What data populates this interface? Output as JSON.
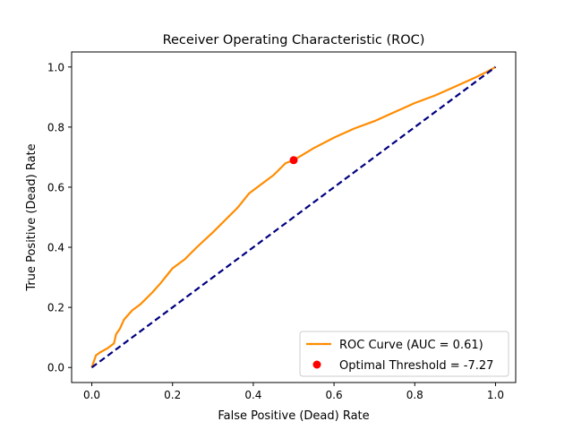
{
  "chart_data": {
    "type": "line",
    "title": "Receiver Operating Characteristic (ROC)",
    "xlabel": "False Positive (Dead) Rate",
    "ylabel": "True Positive (Dead) Rate",
    "xlim": [
      -0.05,
      1.05
    ],
    "ylim": [
      -0.05,
      1.05
    ],
    "xticks": [
      0.0,
      0.2,
      0.4,
      0.6,
      0.8,
      1.0
    ],
    "yticks": [
      0.0,
      0.2,
      0.4,
      0.6,
      0.8,
      1.0
    ],
    "xtick_labels": [
      "0.0",
      "0.2",
      "0.4",
      "0.6",
      "0.8",
      "1.0"
    ],
    "ytick_labels": [
      "0.0",
      "0.2",
      "0.4",
      "0.6",
      "0.8",
      "1.0"
    ],
    "grid": false,
    "legend_position": "lower-right",
    "series": [
      {
        "name": "ROC Curve (AUC = 0.61)",
        "kind": "line",
        "color": "#ff8c00",
        "x": [
          0.0,
          0.005,
          0.01,
          0.02,
          0.04,
          0.055,
          0.06,
          0.07,
          0.08,
          0.1,
          0.12,
          0.15,
          0.17,
          0.2,
          0.23,
          0.26,
          0.3,
          0.33,
          0.36,
          0.39,
          0.42,
          0.45,
          0.48,
          0.5,
          0.55,
          0.6,
          0.65,
          0.7,
          0.75,
          0.8,
          0.85,
          0.9,
          0.95,
          0.98,
          1.0
        ],
        "y": [
          0.0,
          0.02,
          0.04,
          0.05,
          0.065,
          0.08,
          0.11,
          0.13,
          0.16,
          0.19,
          0.21,
          0.25,
          0.28,
          0.33,
          0.36,
          0.4,
          0.45,
          0.49,
          0.53,
          0.58,
          0.61,
          0.64,
          0.68,
          0.69,
          0.73,
          0.765,
          0.795,
          0.82,
          0.85,
          0.88,
          0.905,
          0.935,
          0.965,
          0.985,
          1.0
        ]
      },
      {
        "name": "",
        "kind": "dashed-line",
        "color": "#000080",
        "x": [
          0.0,
          1.0
        ],
        "y": [
          0.0,
          1.0
        ]
      },
      {
        "name": "Optimal Threshold = -7.27",
        "kind": "scatter",
        "color": "#ff0000",
        "x": [
          0.5
        ],
        "y": [
          0.69
        ]
      }
    ]
  }
}
